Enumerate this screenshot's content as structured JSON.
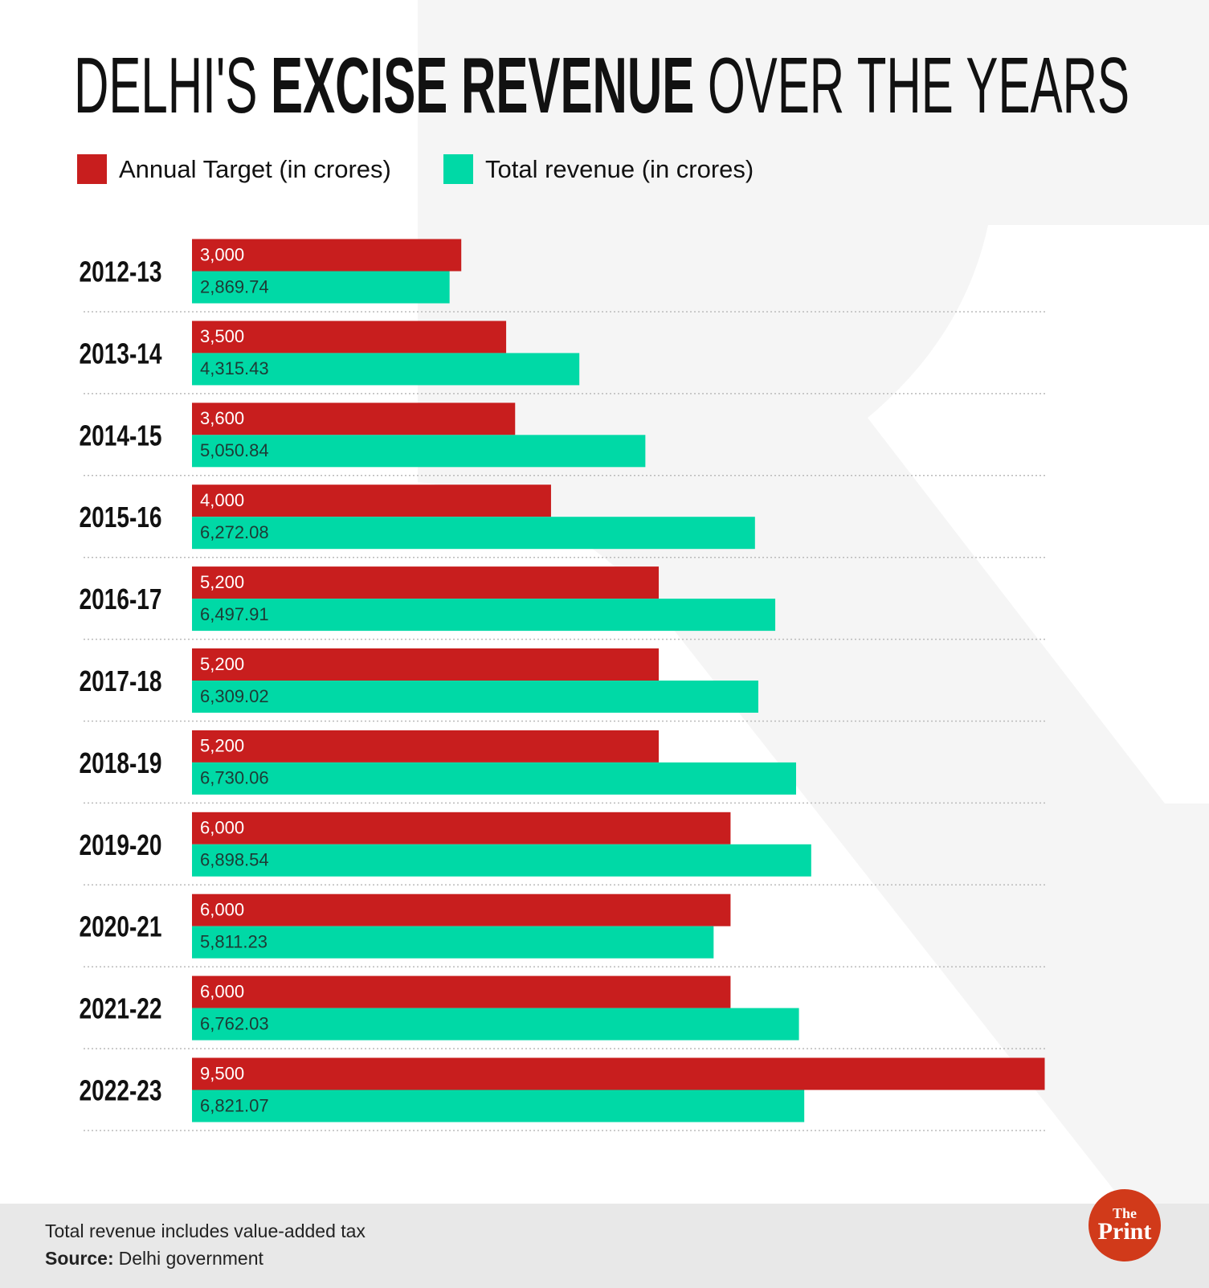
{
  "chart_data": {
    "type": "bar",
    "title_segments": [
      "DELHI'S ",
      "EXCISE REVENUE",
      " OVER THE YEARS"
    ],
    "categories": [
      "2012-13",
      "2013-14",
      "2014-15",
      "2015-16",
      "2016-17",
      "2017-18",
      "2018-19",
      "2019-20",
      "2020-21",
      "2021-22",
      "2022-23"
    ],
    "series": [
      {
        "name": "Annual Target (in crores)",
        "color": "#c81e1e",
        "values": [
          3000,
          3500,
          3600,
          4000,
          5200,
          5200,
          5200,
          6000,
          6000,
          6000,
          9500
        ],
        "value_labels": [
          "3,000",
          "3,500",
          "3,600",
          "4,000",
          "5,200",
          "5,200",
          "5,200",
          "6,000",
          "6,000",
          "6,000",
          "9,500"
        ]
      },
      {
        "name": "Total revenue (in crores)",
        "color": "#00d9a6",
        "values": [
          2869.74,
          4315.43,
          5050.84,
          6272.08,
          6497.91,
          6309.02,
          6730.06,
          6898.54,
          5811.23,
          6762.03,
          6821.07
        ],
        "value_labels": [
          "2,869.74",
          "4,315.43",
          "5,050.84",
          "6,272.08",
          "6,497.91",
          "6,309.02",
          "6,730.06",
          "6,898.54",
          "5,811.23",
          "6,762.03",
          "6,821.07"
        ]
      }
    ],
    "xlim": [
      0,
      9500
    ],
    "note": "Total revenue includes value-added tax",
    "source_label": "Source:",
    "source": "Delhi government",
    "logo": [
      "The",
      "Print"
    ]
  }
}
